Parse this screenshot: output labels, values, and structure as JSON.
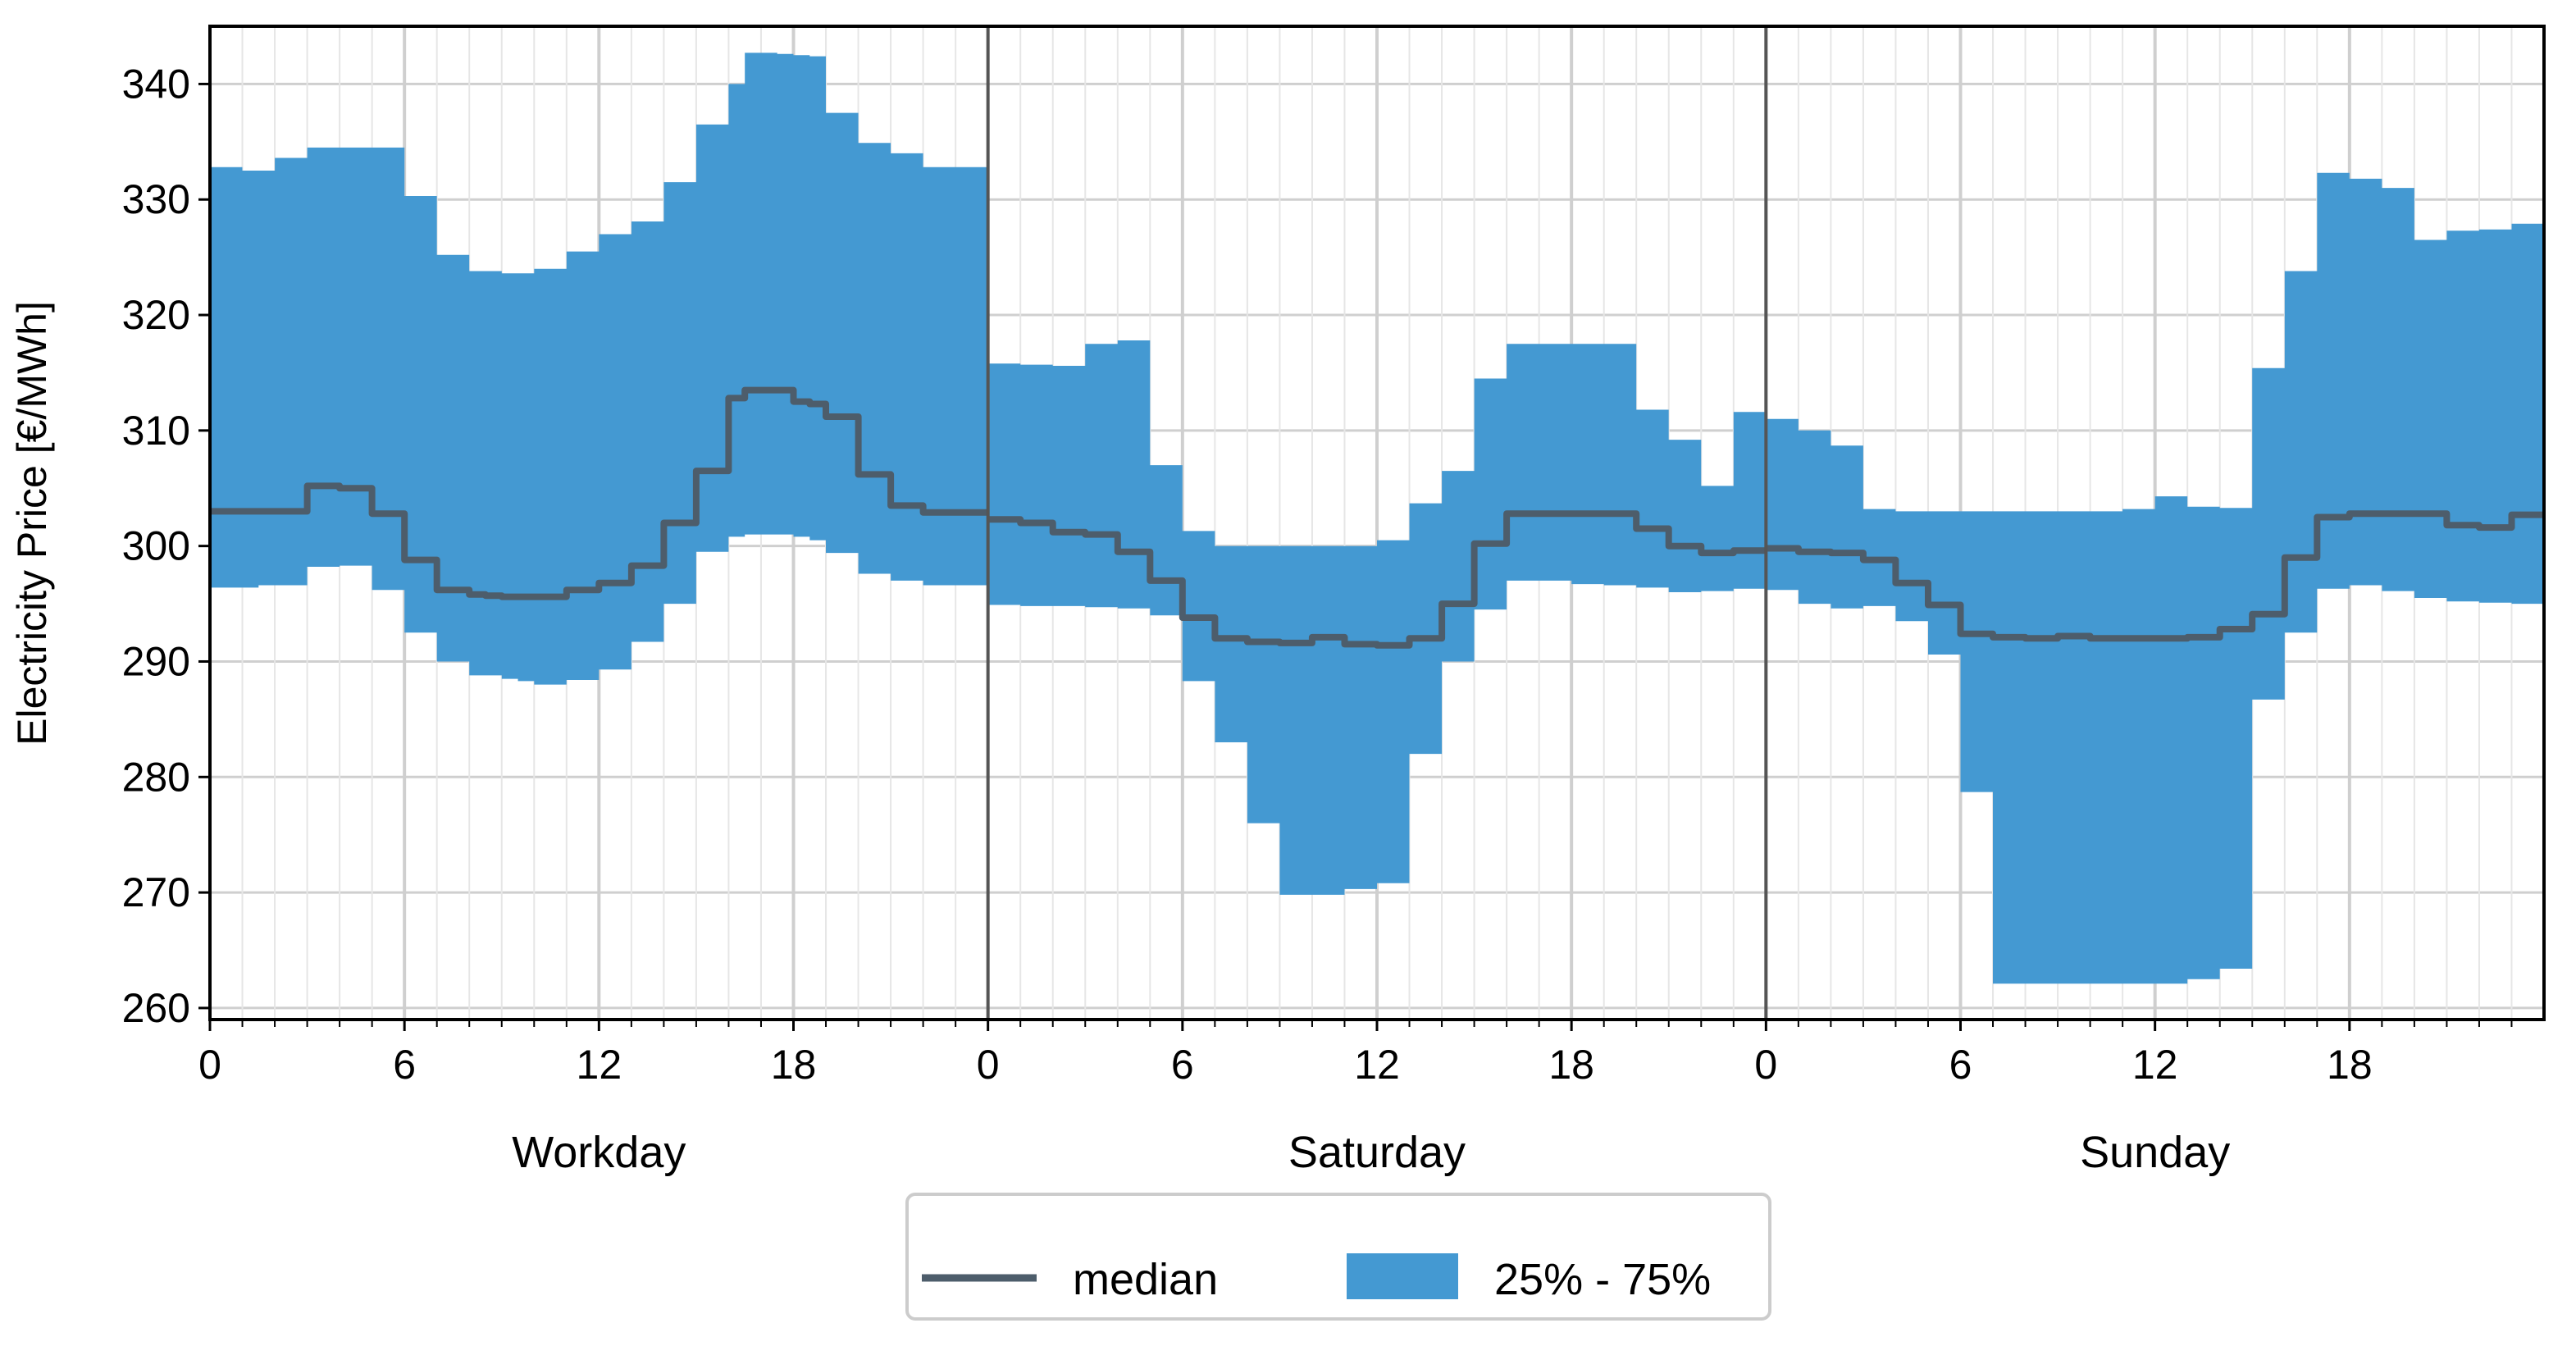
{
  "chart_data": {
    "type": "area",
    "ylabel": "Electricity Price [€/MWh]",
    "ylim": [
      259,
      345
    ],
    "yticks": [
      260,
      270,
      280,
      290,
      300,
      310,
      320,
      330,
      340
    ],
    "xlim": [
      0,
      24
    ],
    "xticks": [
      0,
      6,
      12,
      18
    ],
    "colors": {
      "band": "#4499d2",
      "median": "#4d5d6b",
      "grid": "#cfcfcf",
      "minor_grid": "#e6e6e6",
      "separator": "#555555"
    },
    "legend": {
      "placement": "bottom-center",
      "entries": [
        "median",
        "25% - 75%"
      ]
    },
    "panels": [
      {
        "label": "Workday",
        "x": [
          0,
          0.5,
          1,
          1.5,
          2,
          2.5,
          3,
          3.5,
          4,
          4.5,
          5,
          5.5,
          6,
          6.5,
          7,
          7.5,
          8,
          8.5,
          9,
          9.5,
          10,
          10.5,
          11,
          11.5,
          12,
          12.5,
          13,
          13.5,
          14,
          14.5,
          15,
          15.5,
          16,
          16.5,
          17,
          17.5,
          18,
          18.5,
          19,
          19.5,
          20,
          20.5,
          21,
          21.5,
          22,
          22.5,
          23,
          23.5
        ],
        "median": [
          303,
          303,
          303,
          303,
          303,
          303,
          305.2,
          305.2,
          305,
          305,
          302.8,
          302.8,
          298.8,
          298.8,
          296.2,
          296.2,
          295.8,
          295.7,
          295.6,
          295.6,
          295.6,
          295.6,
          296.2,
          296.2,
          296.8,
          296.8,
          298.3,
          298.3,
          302,
          302,
          306.5,
          306.5,
          312.8,
          313.5,
          313.5,
          313.5,
          312.5,
          312.3,
          311.2,
          311.2,
          306.2,
          306.2,
          303.5,
          303.5,
          302.9,
          302.9,
          302.9,
          302.9
        ],
        "q25": [
          296.4,
          296.4,
          296.4,
          296.6,
          296.6,
          296.6,
          298.2,
          298.2,
          298.3,
          298.3,
          296.2,
          296.2,
          292.5,
          292.5,
          290,
          290,
          288.8,
          288.8,
          288.5,
          288.3,
          288,
          288,
          288.4,
          288.4,
          289.3,
          289.3,
          291.7,
          291.7,
          295,
          295,
          299.5,
          299.5,
          300.8,
          301,
          301,
          301,
          300.8,
          300.5,
          299.4,
          299.4,
          297.6,
          297.6,
          297,
          297,
          296.6,
          296.6,
          296.6,
          296.6
        ],
        "q75": [
          332.8,
          332.8,
          332.5,
          332.5,
          333.6,
          333.6,
          334.5,
          334.5,
          334.5,
          334.5,
          334.5,
          334.5,
          330.3,
          330.3,
          325.2,
          325.2,
          323.8,
          323.8,
          323.6,
          323.6,
          324,
          324,
          325.5,
          325.5,
          327,
          327,
          328.1,
          328.1,
          331.5,
          331.5,
          336.5,
          336.5,
          340,
          342.7,
          342.7,
          342.6,
          342.5,
          342.4,
          337.5,
          337.5,
          334.9,
          334.9,
          334,
          334,
          332.8,
          332.8,
          332.8,
          332.8
        ]
      },
      {
        "label": "Saturday",
        "x": [
          0,
          0.5,
          1,
          1.5,
          2,
          2.5,
          3,
          3.5,
          4,
          4.5,
          5,
          5.5,
          6,
          6.5,
          7,
          7.5,
          8,
          8.5,
          9,
          9.5,
          10,
          10.5,
          11,
          11.5,
          12,
          12.5,
          13,
          13.5,
          14,
          14.5,
          15,
          15.5,
          16,
          16.5,
          17,
          17.5,
          18,
          18.5,
          19,
          19.5,
          20,
          20.5,
          21,
          21.5,
          22,
          22.5,
          23,
          23.5
        ],
        "median": [
          302.3,
          302.3,
          302,
          302,
          301.2,
          301.2,
          301,
          301,
          299.5,
          299.5,
          297,
          297,
          293.8,
          293.8,
          292,
          292,
          291.7,
          291.7,
          291.6,
          291.6,
          292.1,
          292.1,
          291.5,
          291.5,
          291.4,
          291.4,
          292,
          292,
          295,
          295,
          300.2,
          300.2,
          302.8,
          302.8,
          302.8,
          302.8,
          302.8,
          302.8,
          302.8,
          302.8,
          301.5,
          301.5,
          300,
          300,
          299.4,
          299.4,
          299.6,
          299.6
        ],
        "q25": [
          294.9,
          294.9,
          294.8,
          294.8,
          294.8,
          294.8,
          294.7,
          294.7,
          294.6,
          294.6,
          294,
          294,
          288.3,
          288.3,
          283,
          283,
          276,
          276,
          269.8,
          269.8,
          269.8,
          269.8,
          270.3,
          270.3,
          270.8,
          270.8,
          282,
          282,
          290,
          290,
          294.5,
          294.5,
          297,
          297,
          297,
          297,
          296.7,
          296.7,
          296.6,
          296.6,
          296.4,
          296.4,
          296,
          296,
          296.1,
          296.1,
          296.3,
          296.3
        ],
        "q75": [
          315.8,
          315.8,
          315.7,
          315.7,
          315.6,
          315.6,
          317.5,
          317.5,
          317.8,
          317.8,
          307,
          307,
          301.3,
          301.3,
          300,
          300,
          300,
          300,
          300,
          300,
          300,
          300,
          300,
          300,
          300.5,
          300.5,
          303.7,
          303.7,
          306.5,
          306.5,
          314.5,
          314.5,
          317.5,
          317.5,
          317.5,
          317.5,
          317.5,
          317.5,
          317.5,
          317.5,
          311.8,
          311.8,
          309.2,
          309.2,
          305.2,
          305.2,
          311.6,
          311.6
        ]
      },
      {
        "label": "Sunday",
        "x": [
          0,
          0.5,
          1,
          1.5,
          2,
          2.5,
          3,
          3.5,
          4,
          4.5,
          5,
          5.5,
          6,
          6.5,
          7,
          7.5,
          8,
          8.5,
          9,
          9.5,
          10,
          10.5,
          11,
          11.5,
          12,
          12.5,
          13,
          13.5,
          14,
          14.5,
          15,
          15.5,
          16,
          16.5,
          17,
          17.5,
          18,
          18.5,
          19,
          19.5,
          20,
          20.5,
          21,
          21.5,
          22,
          22.5,
          23,
          23.5
        ],
        "median": [
          299.8,
          299.8,
          299.5,
          299.5,
          299.4,
          299.4,
          298.8,
          298.8,
          296.8,
          296.8,
          294.9,
          294.9,
          292.4,
          292.4,
          292.1,
          292.1,
          292,
          292,
          292.2,
          292.2,
          292,
          292,
          292,
          292,
          292,
          292,
          292.1,
          292.1,
          292.8,
          292.8,
          294.1,
          294.1,
          299,
          299,
          302.5,
          302.5,
          302.8,
          302.8,
          302.8,
          302.8,
          302.8,
          302.8,
          301.8,
          301.8,
          301.6,
          301.6,
          302.7,
          302.7
        ],
        "q25": [
          296.2,
          296.2,
          295,
          295,
          294.6,
          294.6,
          294.8,
          294.8,
          293.5,
          293.5,
          290.6,
          290.6,
          278.7,
          278.7,
          262.1,
          262.1,
          262.1,
          262.1,
          262.1,
          262.1,
          262.1,
          262.1,
          262.1,
          262.1,
          262.1,
          262.1,
          262.5,
          262.5,
          263.4,
          263.4,
          286.7,
          286.7,
          292.5,
          292.5,
          296.3,
          296.3,
          296.6,
          296.6,
          296.1,
          296.1,
          295.5,
          295.5,
          295.2,
          295.2,
          295.1,
          295.1,
          295,
          295
        ],
        "q75": [
          311,
          311,
          310,
          310,
          308.7,
          308.7,
          303.2,
          303.2,
          303,
          303,
          303,
          303,
          303,
          303,
          303,
          303,
          303,
          303,
          303,
          303,
          303,
          303,
          303.2,
          303.2,
          304.3,
          304.3,
          303.4,
          303.4,
          303.3,
          303.3,
          315.4,
          315.4,
          323.8,
          323.8,
          332.3,
          332.3,
          331.8,
          331.8,
          331,
          331,
          326.5,
          326.5,
          327.3,
          327.3,
          327.4,
          327.4,
          327.9,
          327.9
        ]
      }
    ]
  }
}
